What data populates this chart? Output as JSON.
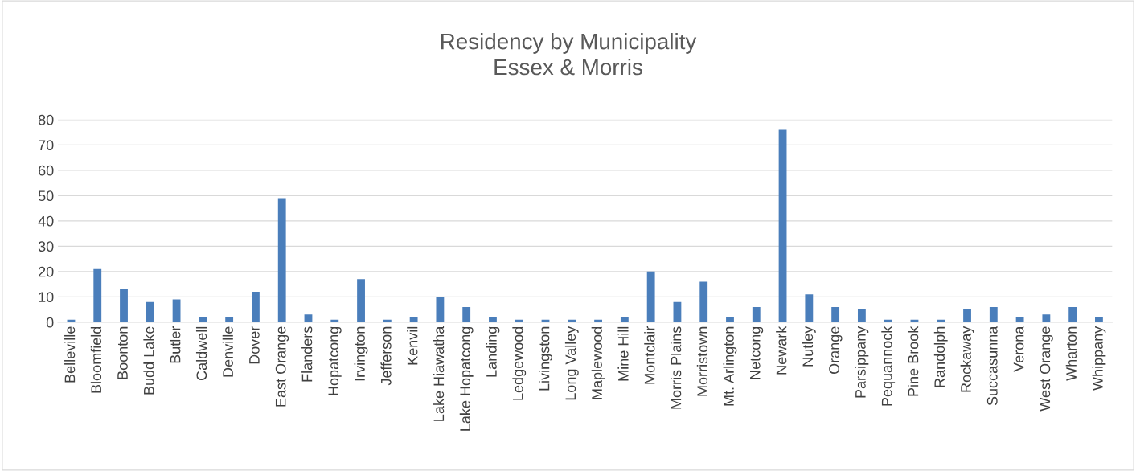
{
  "chart_data": {
    "type": "bar",
    "title": "Residency by Municipality\nEssex & Morris",
    "categories": [
      "Belleville",
      "Bloomfield",
      "Boonton",
      "Budd Lake",
      "Butler",
      "Caldwell",
      "Denville",
      "Dover",
      "East Orange",
      "Flanders",
      "Hopatcong",
      "Irvington",
      "Jefferson",
      "Kenvil",
      "Lake Hiawatha",
      "Lake Hopatcong",
      "Landing",
      "Ledgewood",
      "Livingston",
      "Long Valley",
      "Maplewood",
      "Mine Hill",
      "Montclair",
      "Morris Plains",
      "Morristown",
      "Mt. Arlington",
      "Netcong",
      "Newark",
      "Nutley",
      "Orange",
      "Parsippany",
      "Pequannock",
      "Pine Brook",
      "Randolph",
      "Rockaway",
      "Succasunna",
      "Verona",
      "West Orange",
      "Wharton",
      "Whippany"
    ],
    "values": [
      1,
      21,
      13,
      8,
      9,
      2,
      2,
      12,
      49,
      3,
      1,
      17,
      1,
      2,
      10,
      6,
      2,
      1,
      1,
      1,
      1,
      2,
      20,
      8,
      16,
      2,
      6,
      76,
      11,
      6,
      5,
      1,
      1,
      1,
      5,
      6,
      2,
      3,
      6,
      2
    ],
    "color": "#4a7ebb",
    "ylim": [
      0,
      80
    ],
    "yticks": [
      0,
      10,
      20,
      30,
      40,
      50,
      60,
      70,
      80
    ],
    "grid": "y"
  }
}
